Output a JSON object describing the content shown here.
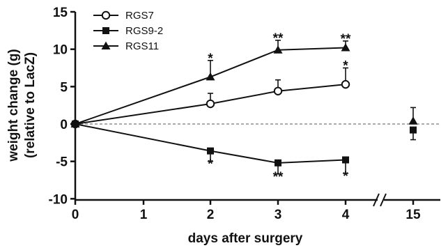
{
  "chart_data": {
    "type": "line",
    "xlabel": "days after surgery",
    "ylabel_lines": [
      "weight change (g)",
      "(relative to LacZ)"
    ],
    "x_ticks": [
      0,
      1,
      2,
      3,
      4,
      15
    ],
    "x_tick_labels": [
      "0",
      "1",
      "2",
      "3",
      "4",
      "15"
    ],
    "y_ticks": [
      -10,
      -5,
      0,
      5,
      10,
      15
    ],
    "y_tick_labels": [
      "-10",
      "-5",
      "0",
      "5",
      "10",
      "15"
    ],
    "ylim": [
      -10,
      15
    ],
    "x_axis_break": "between 4 and 15",
    "baseline_dashed_at": 0,
    "legend_position": "top-left",
    "series": [
      {
        "name": "RGS7",
        "marker": "open-circle",
        "points": [
          {
            "x": 0,
            "y": 0
          },
          {
            "x": 2,
            "y": 2.7,
            "err": 1.4
          },
          {
            "x": 3,
            "y": 4.4,
            "err": 1.5
          },
          {
            "x": 4,
            "y": 5.3,
            "err": 2.2,
            "sig": "*"
          }
        ]
      },
      {
        "name": "RGS9-2",
        "marker": "filled-square",
        "points": [
          {
            "x": 0,
            "y": 0
          },
          {
            "x": 2,
            "y": -3.6,
            "err": 1.4,
            "sig": "*"
          },
          {
            "x": 3,
            "y": -5.2,
            "err": 1.5,
            "sig": "**"
          },
          {
            "x": 4,
            "y": -4.8,
            "err": 1.8,
            "sig": "*"
          },
          {
            "x": 15,
            "y": -0.8,
            "err": 1.3,
            "connected": false
          }
        ]
      },
      {
        "name": "RGS11",
        "marker": "filled-triangle",
        "points": [
          {
            "x": 0,
            "y": 0
          },
          {
            "x": 2,
            "y": 6.3,
            "err": 2.2,
            "sig": "*"
          },
          {
            "x": 3,
            "y": 9.9,
            "err": 1.3,
            "sig": "**"
          },
          {
            "x": 4,
            "y": 10.2,
            "err": 0.9,
            "sig": "**"
          },
          {
            "x": 15,
            "y": 0.4,
            "err": 1.8,
            "connected": false
          }
        ]
      }
    ]
  }
}
